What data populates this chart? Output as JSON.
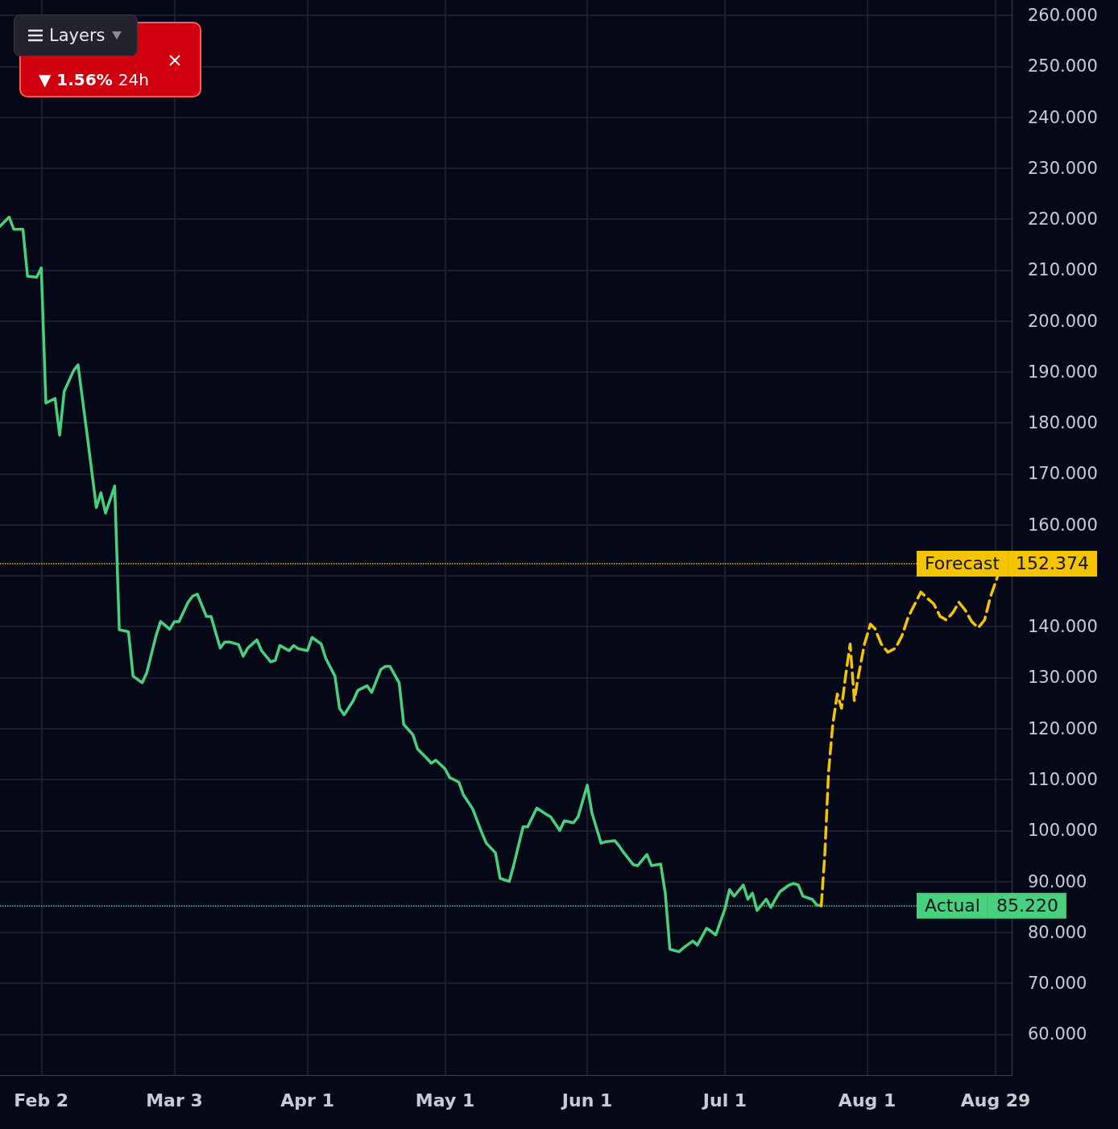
{
  "chart_data": {
    "type": "line",
    "x": [
      "--01-24",
      "--01-26",
      "--01-27",
      "--01-29",
      "--01-30",
      "--02-01",
      "--02-02",
      "--02-03",
      "--02-05",
      "--02-06",
      "--02-07",
      "--02-09",
      "--02-10",
      "--02-12",
      "--02-14",
      "--02-15",
      "--02-16",
      "--02-18",
      "--02-19",
      "--02-21",
      "--02-22",
      "--02-24",
      "--02-25",
      "--02-27",
      "--02-28",
      "--03-02",
      "--03-03",
      "--03-04",
      "--03-06",
      "--03-07",
      "--03-08",
      "--03-10",
      "--03-11",
      "--03-13",
      "--03-14",
      "--03-15",
      "--03-17",
      "--03-18",
      "--03-19",
      "--03-21",
      "--03-22",
      "--03-24",
      "--03-25",
      "--03-26",
      "--03-28",
      "--03-29",
      "--03-30",
      "--04-01",
      "--04-02",
      "--04-04",
      "--04-05",
      "--04-07",
      "--04-08",
      "--04-09",
      "--04-11",
      "--04-12",
      "--04-14",
      "--04-15",
      "--04-17",
      "--04-18",
      "--04-19",
      "--04-21",
      "--04-22",
      "--04-24",
      "--04-25",
      "--04-27",
      "--04-28",
      "--04-29",
      "--05-01",
      "--05-02",
      "--05-04",
      "--05-05",
      "--05-07",
      "--05-09",
      "--05-10",
      "--05-12",
      "--05-13",
      "--05-15",
      "--05-16",
      "--05-18",
      "--05-19",
      "--05-21",
      "--05-23",
      "--05-24",
      "--05-26",
      "--05-27",
      "--05-29",
      "--05-30",
      "--06-01",
      "--06-02",
      "--06-04",
      "--06-05",
      "--06-07",
      "--06-08",
      "--06-09",
      "--06-11",
      "--06-12",
      "--06-14",
      "--06-15",
      "--06-17",
      "--06-18",
      "--06-19",
      "--06-21",
      "--06-22",
      "--06-24",
      "--06-25",
      "--06-27",
      "--06-28",
      "--06-29",
      "--07-01",
      "--07-02",
      "--07-03",
      "--07-05",
      "--07-06",
      "--07-07",
      "--07-08",
      "--07-10",
      "--07-11",
      "--07-12",
      "--07-13",
      "--07-15",
      "--07-16",
      "--07-17",
      "--07-18",
      "--07-20",
      "--07-21",
      "--07-22"
    ],
    "series": [
      {
        "color": "#47d17f",
        "line_style": "solid",
        "values": [
          218.6,
          220.4,
          218,
          218,
          208.8,
          208.6,
          210.4,
          183.9,
          184.8,
          177.6,
          186.2,
          190.2,
          191.4,
          177.6,
          163.4,
          166.3,
          162.3,
          167.6,
          139.4,
          139,
          130.3,
          129,
          131,
          138.2,
          141,
          139.5,
          141,
          141,
          144.8,
          146,
          146.4,
          142,
          142,
          135.8,
          137,
          137,
          136.5,
          134.2,
          135.8,
          137.4,
          135.3,
          133.1,
          133.4,
          136.3,
          135.3,
          136.3,
          135.7,
          135.3,
          137.9,
          136.6,
          133.8,
          130.3,
          124,
          122.7,
          125.5,
          127.5,
          128.4,
          127.1,
          131.6,
          132.2,
          132.2,
          129,
          120.8,
          118.8,
          116,
          114.2,
          113.2,
          113.8,
          112.1,
          110.4,
          109.5,
          107,
          104.3,
          99.6,
          97.5,
          95.6,
          90.6,
          90,
          93.3,
          100.7,
          100.7,
          104.4,
          103.2,
          102.7,
          100,
          101.9,
          101.5,
          102.7,
          108.9,
          103.5,
          97.5,
          97.8,
          98,
          96.9,
          95.6,
          93.3,
          93.1,
          95.3,
          93.1,
          93.4,
          87.7,
          76.7,
          76.2,
          77,
          78.3,
          77.5,
          80.8,
          80.2,
          79.5,
          84.6,
          88.4,
          87.1,
          89.3,
          86.5,
          87.7,
          84.3,
          86.5,
          84.9,
          86.5,
          88,
          89.3,
          89.6,
          89.3,
          87.1,
          86.5,
          85.4,
          85.22
        ]
      },
      {
        "color": "#f5c400",
        "line_style": "dashed",
        "x": [
          "--07-22T00:00",
          "--07-22T19:00",
          "--07-23T14:00",
          "--07-24T12:00",
          "--07-25T12:00",
          "--07-26T10:00",
          "--07-27T07:00",
          "--07-28T07:00",
          "--07-29T05:00",
          "--07-30T02:00",
          "--07-31T10:00",
          "--08-01T17:00",
          "--08-02T17:00",
          "--08-04T02:00",
          "--08-05T12:00",
          "--08-07T05:00",
          "--08-08T14:00",
          "--08-10T00:00",
          "--08-11T10:00",
          "--08-12T17:00",
          "--08-14T02:00",
          "--08-15T12:00",
          "--08-16T22:00",
          "--08-18T07:00",
          "--08-19T17:00",
          "--08-21T00:00",
          "--08-22T10:00",
          "--08-23T19:00",
          "--08-25T05:00",
          "--08-26T14:00",
          "--08-27T22:00",
          "--08-29T07:00",
          "--08-30T10:00"
        ],
        "values": [
          85.22,
          95.6,
          111.4,
          120.8,
          126.8,
          124,
          130.3,
          136.6,
          125.5,
          130.3,
          136.6,
          140.5,
          139.6,
          136.6,
          135,
          135.8,
          138.2,
          142,
          144.5,
          146.8,
          145.6,
          144.5,
          142,
          141.3,
          142.8,
          144.8,
          143.2,
          141,
          139.8,
          141.3,
          146,
          149.5,
          152.374
        ]
      }
    ],
    "xlim": [
      "--01-24",
      "--09-01T12:00"
    ],
    "xticks": [
      {
        "value": "--02-02",
        "label": "Feb 2"
      },
      {
        "value": "--03-03",
        "label": "Mar 3"
      },
      {
        "value": "--04-01",
        "label": "Apr 1"
      },
      {
        "value": "--05-01",
        "label": "May 1"
      },
      {
        "value": "--06-01",
        "label": "Jun 1"
      },
      {
        "value": "--07-01",
        "label": "Jul 1"
      },
      {
        "value": "--08-01",
        "label": "Aug 1"
      },
      {
        "value": "--08-29",
        "label": "Aug 29"
      }
    ],
    "ylim": [
      52,
      263
    ],
    "yticks": [
      {
        "value": 60,
        "label": "60.000"
      },
      {
        "value": 70,
        "label": "70.000"
      },
      {
        "value": 80,
        "label": "80.000"
      },
      {
        "value": 90,
        "label": "90.000"
      },
      {
        "value": 100,
        "label": "100.000"
      },
      {
        "value": 110,
        "label": "110.000"
      },
      {
        "value": 120,
        "label": "120.000"
      },
      {
        "value": 130,
        "label": "130.000"
      },
      {
        "value": 140,
        "label": "140.000"
      },
      {
        "value": 150,
        "label": null
      },
      {
        "value": 160,
        "label": "160.000"
      },
      {
        "value": 170,
        "label": "170.000"
      },
      {
        "value": 180,
        "label": "180.000"
      },
      {
        "value": 190,
        "label": "190.000"
      },
      {
        "value": 200,
        "label": "200.000"
      },
      {
        "value": 210,
        "label": "210.000"
      },
      {
        "value": 220,
        "label": "220.000"
      },
      {
        "value": 230,
        "label": "230.000"
      },
      {
        "value": 240,
        "label": "240.000"
      },
      {
        "value": 250,
        "label": "250.000"
      },
      {
        "value": 260,
        "label": "260.000"
      }
    ],
    "ref_lines": [
      {
        "axis": "y",
        "value": 152.374,
        "label": "Forecast",
        "color": "#f5c400",
        "line_style": "dotted"
      },
      {
        "axis": "y",
        "value": 85.22,
        "label": "Actual",
        "color": "#47d17f",
        "line_style": "dotted"
      }
    ],
    "annotations": [
      "Layers",
      "▼ 1.56%",
      "24h",
      "152.374",
      "85.220"
    ],
    "grid": true,
    "marker": "none"
  }
}
